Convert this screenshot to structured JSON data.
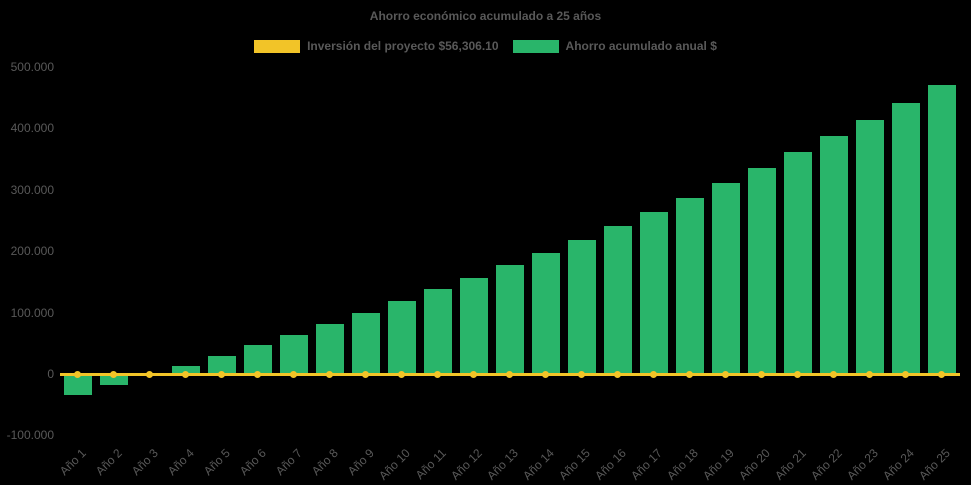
{
  "chart_data": {
    "type": "bar",
    "title": "Ahorro económico acumulado a 25 años",
    "categories": [
      "Año 1",
      "Año 2",
      "Año 3",
      "Año 4",
      "Año 5",
      "Año 6",
      "Año 7",
      "Año 8",
      "Año 9",
      "Año 10",
      "Año 11",
      "Año 12",
      "Año 13",
      "Año 14",
      "Año 15",
      "Año 16",
      "Año 17",
      "Año 18",
      "Año 19",
      "Año 20",
      "Año 21",
      "Año 22",
      "Año 23",
      "Año 24",
      "Año 25"
    ],
    "series": [
      {
        "name": "Inversión del proyecto $56,306.10",
        "type": "line",
        "color": "#F2C428",
        "marker": "circle",
        "values": [
          0,
          0,
          0,
          0,
          0,
          0,
          0,
          0,
          0,
          0,
          0,
          0,
          0,
          0,
          0,
          0,
          0,
          0,
          0,
          0,
          0,
          0,
          0,
          0,
          0
        ]
      },
      {
        "name": "Ahorro acumulado anual $",
        "type": "bar",
        "color": "#29B56A",
        "values": [
          -35000,
          -18000,
          2000,
          13000,
          30000,
          47000,
          64000,
          82000,
          100000,
          119000,
          138000,
          157000,
          177000,
          197000,
          219000,
          241000,
          264000,
          287000,
          311000,
          335000,
          361000,
          387000,
          414000,
          442000,
          470000
        ]
      }
    ],
    "ylim": [
      -100000,
      500000
    ],
    "yticks": [
      {
        "label": "500.000",
        "value": 500000
      },
      {
        "label": "400.000",
        "value": 400000
      },
      {
        "label": "300.000",
        "value": 300000
      },
      {
        "label": "200.000",
        "value": 200000
      },
      {
        "label": "100.000",
        "value": 100000
      },
      {
        "label": "0",
        "value": 0
      },
      {
        "label": "-100.000",
        "value": -100000
      }
    ],
    "legend_position": "top",
    "grid": false,
    "background": "#000000",
    "text_color": "#595959"
  }
}
